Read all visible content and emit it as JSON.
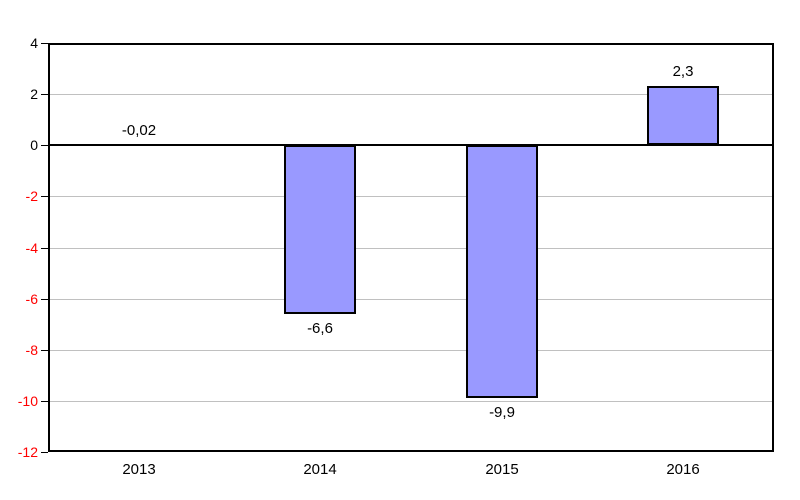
{
  "chart_data": {
    "type": "bar",
    "title": "",
    "xlabel": "",
    "ylabel": "",
    "categories": [
      "2013",
      "2014",
      "2015",
      "2016"
    ],
    "values": [
      -0.02,
      -6.6,
      -9.9,
      2.3
    ],
    "value_labels": [
      "-0,02",
      "-6,6",
      "-9,9",
      "2,3"
    ],
    "value_label_positions": [
      "above",
      "below",
      "below",
      "above"
    ],
    "ylim": [
      -12,
      4
    ],
    "ytick_step": 2,
    "ytick_labels": [
      "4",
      "2",
      "0",
      "-2",
      "-4",
      "-6",
      "-8",
      "-10",
      "-12"
    ],
    "grid": true,
    "legend": false,
    "colors": {
      "background": "#FFFFFF",
      "bar_fill": "#9999FF",
      "bar_border": "#000000",
      "gridline": "#C0C0C0",
      "axis_line": "#000000",
      "zero_line": "#000000",
      "tick_label_positive": "#000000",
      "tick_label_negative": "#FF0000",
      "category_label": "#000000",
      "value_label": "#000000"
    }
  }
}
